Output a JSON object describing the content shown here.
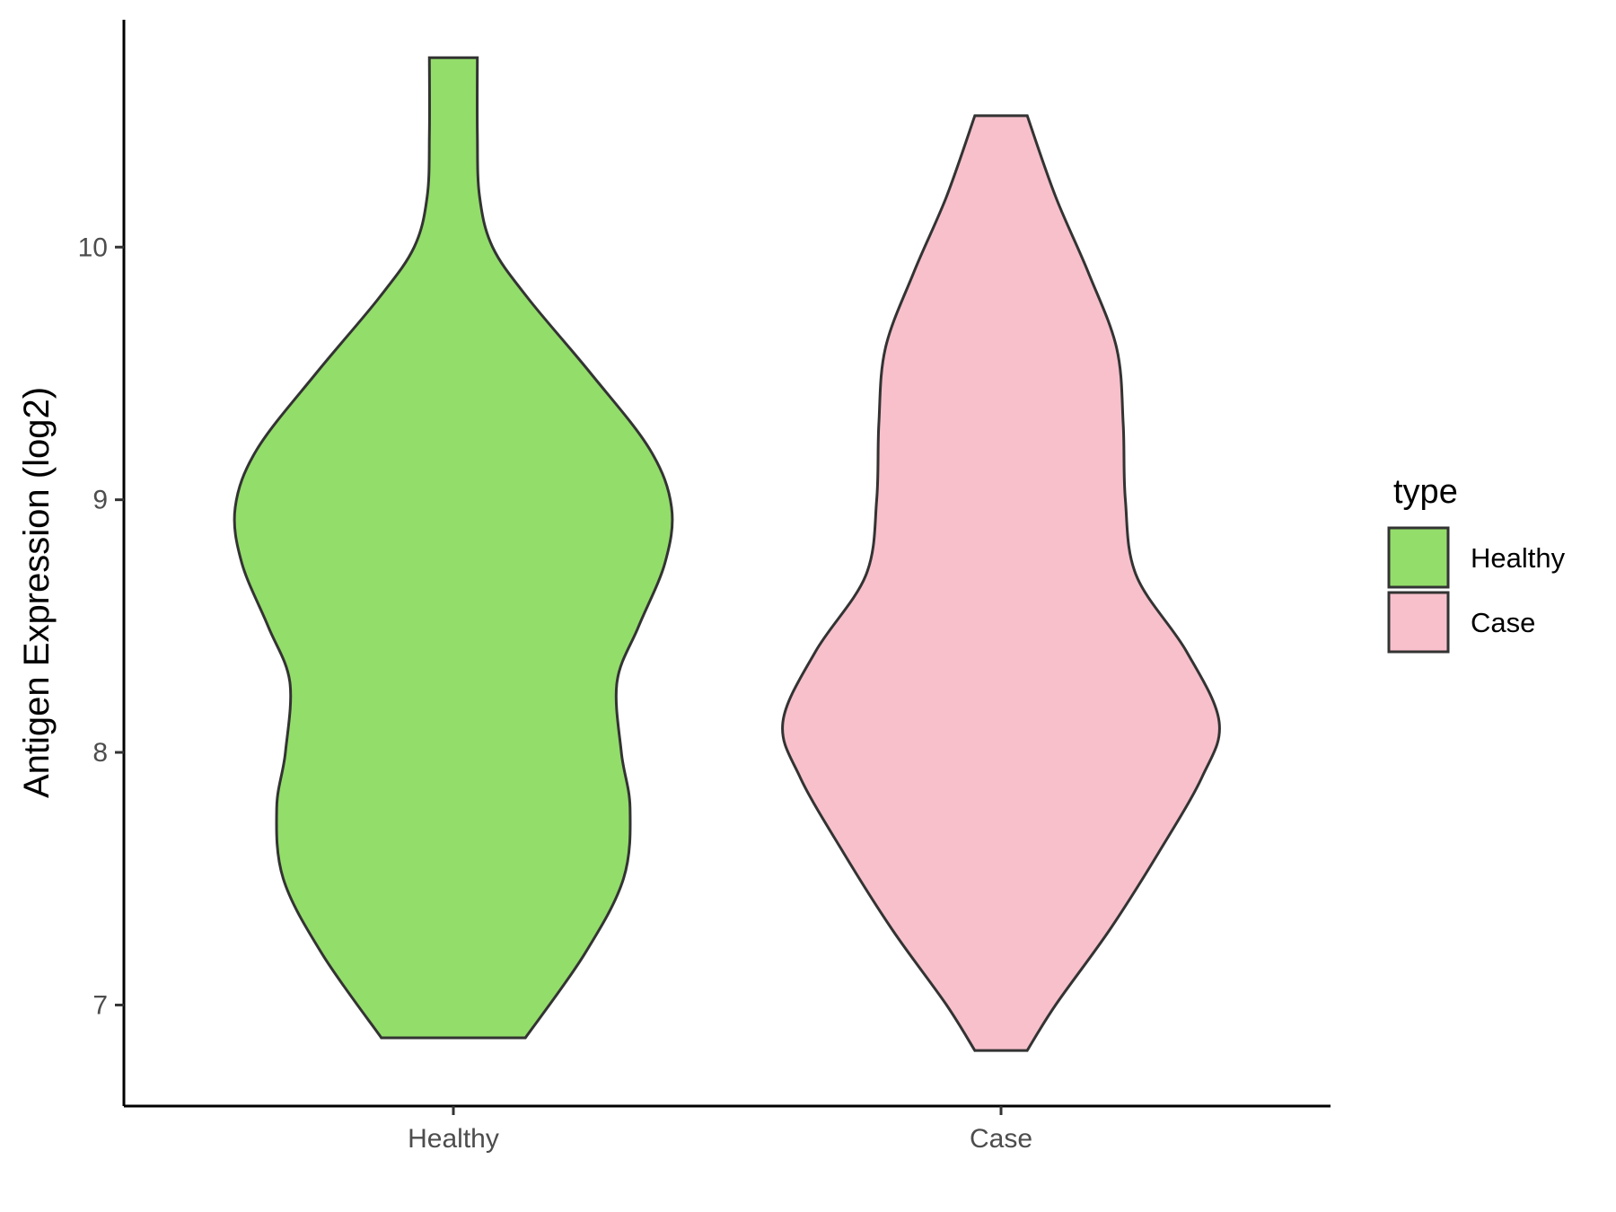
{
  "chart_data": {
    "type": "violin",
    "categories": [
      "Healthy",
      "Case"
    ],
    "ylabel": "Antigen Expression (log2)",
    "xlabel": "",
    "ylim": [
      6.6,
      10.9
    ],
    "yticks": [
      7,
      8,
      9,
      10
    ],
    "legend": {
      "title": "type",
      "position": "right",
      "entries": [
        "Healthy",
        "Case"
      ]
    },
    "colors": {
      "Healthy": "#93dd6a",
      "Case": "#f7c0cb"
    },
    "series": [
      {
        "name": "Healthy",
        "min": 6.87,
        "max": 10.75,
        "density_profile": [
          [
            6.87,
            0.33
          ],
          [
            7.2,
            0.6
          ],
          [
            7.5,
            0.78
          ],
          [
            7.78,
            0.81
          ],
          [
            8.0,
            0.77
          ],
          [
            8.28,
            0.75
          ],
          [
            8.5,
            0.85
          ],
          [
            8.75,
            0.97
          ],
          [
            8.97,
            1.0
          ],
          [
            9.2,
            0.9
          ],
          [
            9.5,
            0.63
          ],
          [
            9.8,
            0.34
          ],
          [
            10.0,
            0.18
          ],
          [
            10.2,
            0.12
          ],
          [
            10.45,
            0.11
          ],
          [
            10.75,
            0.11
          ]
        ]
      },
      {
        "name": "Case",
        "min": 6.82,
        "max": 10.52,
        "density_profile": [
          [
            6.82,
            0.12
          ],
          [
            7.0,
            0.25
          ],
          [
            7.3,
            0.5
          ],
          [
            7.6,
            0.72
          ],
          [
            7.9,
            0.92
          ],
          [
            8.12,
            1.0
          ],
          [
            8.4,
            0.85
          ],
          [
            8.7,
            0.62
          ],
          [
            9.0,
            0.57
          ],
          [
            9.3,
            0.56
          ],
          [
            9.6,
            0.53
          ],
          [
            9.9,
            0.4
          ],
          [
            10.2,
            0.25
          ],
          [
            10.52,
            0.12
          ]
        ]
      }
    ]
  }
}
